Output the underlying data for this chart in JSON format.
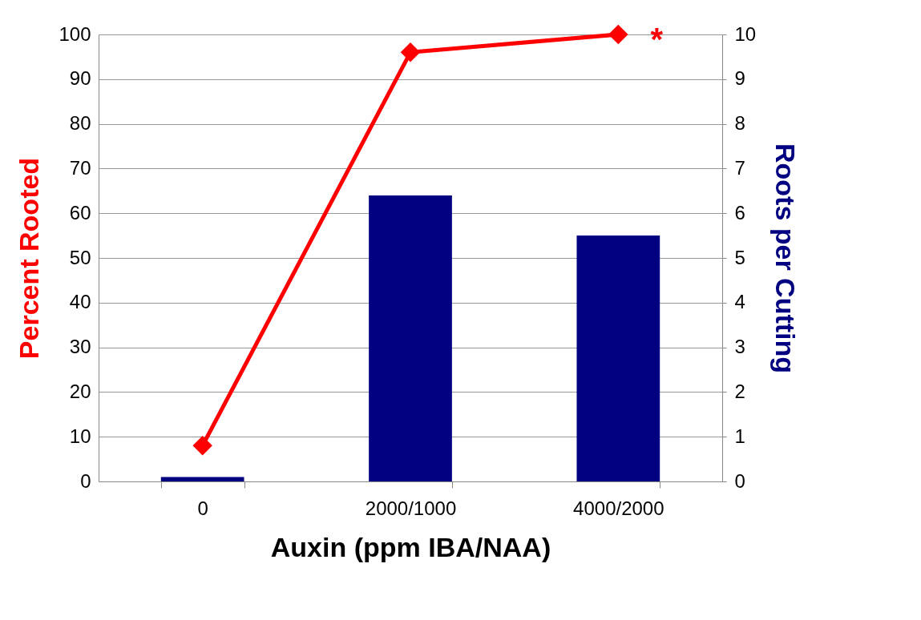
{
  "chart_data": {
    "type": "bar",
    "xlabel": "Auxin (ppm IBA/NAA)",
    "ylabel": "Percent Rooted",
    "y2label": "Roots per Cutting",
    "categories": [
      "0",
      "2000/1000",
      "4000/2000"
    ],
    "series": [
      {
        "axis": "y2",
        "color": "#000080",
        "values": [
          0.1,
          6.4,
          5.5
        ]
      },
      {
        "type": "line",
        "axis": "y",
        "color": "#ff0000",
        "marker": "diamond",
        "values": [
          8,
          96,
          100
        ]
      }
    ],
    "ylim": [
      0,
      100
    ],
    "yticks": [
      0,
      10,
      20,
      30,
      40,
      50,
      60,
      70,
      80,
      90,
      100
    ],
    "y2lim": [
      0,
      10
    ],
    "y2ticks": [
      0,
      1,
      2,
      3,
      4,
      5,
      6,
      7,
      8,
      9,
      10
    ],
    "annotations": [
      {
        "text": "*",
        "x": "4000/2000",
        "y": 100
      }
    ],
    "grid": "y"
  }
}
